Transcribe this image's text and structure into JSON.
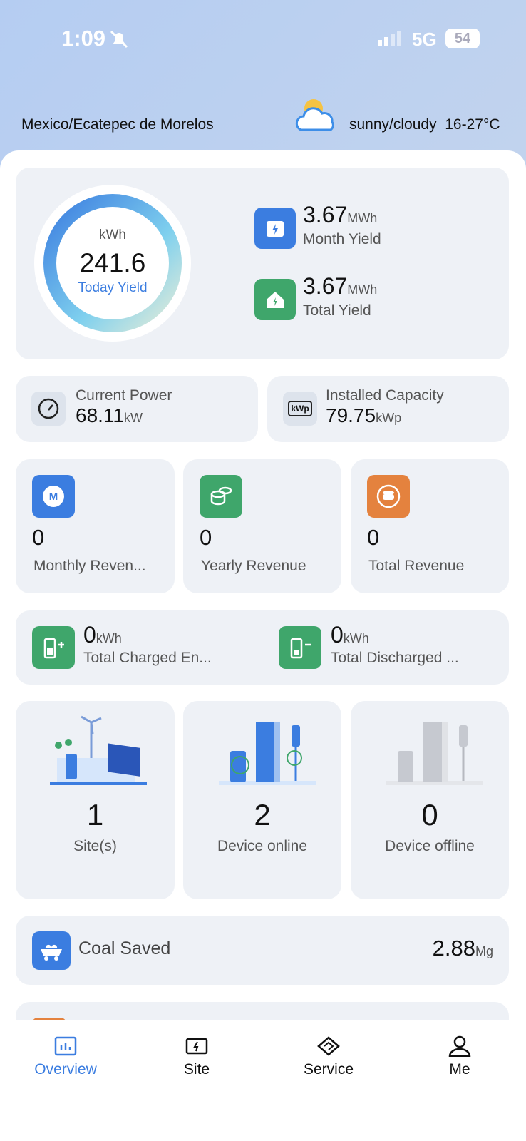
{
  "status_bar": {
    "time": "1:09",
    "network": "5G",
    "battery": 54
  },
  "header": {
    "location": "Mexico/Ecatepec de Morelos",
    "weather": "sunny/cloudy",
    "temperature": "16-27°C"
  },
  "yield": {
    "today": {
      "unit": "kWh",
      "value": 241.6,
      "label": "Today Yield"
    },
    "month": {
      "value": 3.67,
      "unit": "MWh",
      "label": "Month Yield"
    },
    "total": {
      "value": 3.67,
      "unit": "MWh",
      "label": "Total Yield"
    }
  },
  "power": [
    {
      "label": "Current Power",
      "value": 68.11,
      "unit": "kW"
    },
    {
      "label": "Installed Capacity",
      "value": 79.75,
      "unit": "kWp",
      "icon_label": "kWp"
    }
  ],
  "revenue": [
    {
      "value": 0,
      "label": "Monthly Reven...",
      "icon_label": "M"
    },
    {
      "value": 0,
      "label": "Yearly Revenue"
    },
    {
      "value": 0,
      "label": "Total Revenue"
    }
  ],
  "energy": [
    {
      "value": 0,
      "unit": "kWh",
      "label": "Total Charged En..."
    },
    {
      "value": 0,
      "unit": "kWh",
      "label": "Total Discharged ..."
    }
  ],
  "devices": [
    {
      "value": 1,
      "label": "Site(s)"
    },
    {
      "value": 2,
      "label": "Device online"
    },
    {
      "value": 0,
      "label": "Device offline"
    }
  ],
  "coal": {
    "label": "Coal Saved",
    "value": 2.88,
    "unit": "Mg"
  },
  "nav": [
    "Overview",
    "Site",
    "Service",
    "Me"
  ]
}
